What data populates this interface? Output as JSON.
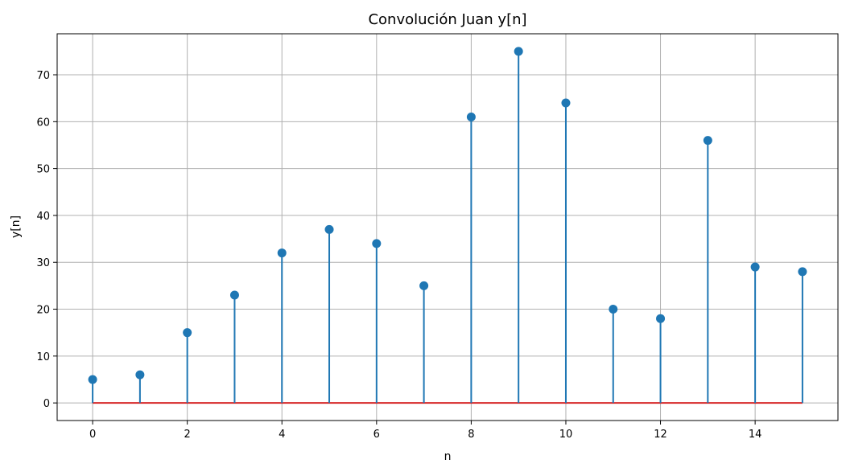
{
  "chart_data": {
    "type": "stem",
    "title": "Convolución Juan y[n]",
    "xlabel": "n",
    "ylabel": "y[n]",
    "x": [
      0,
      1,
      2,
      3,
      4,
      5,
      6,
      7,
      8,
      9,
      10,
      11,
      12,
      13,
      14,
      15
    ],
    "values": [
      5,
      6,
      15,
      23,
      32,
      37,
      34,
      25,
      61,
      75,
      64,
      20,
      18,
      56,
      29,
      28
    ],
    "xlim": [
      -0.75,
      15.75
    ],
    "ylim": [
      -3.75,
      78.75
    ],
    "xticks": [
      0,
      2,
      4,
      6,
      8,
      10,
      12,
      14
    ],
    "yticks": [
      0,
      10,
      20,
      30,
      40,
      50,
      60,
      70
    ],
    "grid": true,
    "colors": {
      "stem": "#1f77b4",
      "marker": "#1f77b4",
      "baseline": "#d62728",
      "grid": "#b0b0b0"
    }
  }
}
